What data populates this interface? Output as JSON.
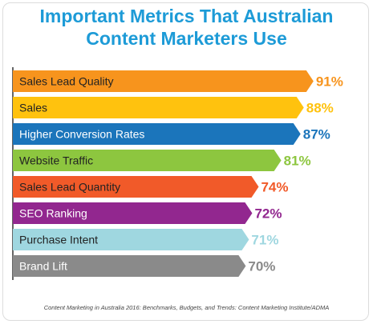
{
  "chart_data": {
    "type": "bar",
    "orientation": "horizontal",
    "title_lines": [
      "Important Metrics That Australian",
      "Content Marketers Use"
    ],
    "categories": [
      "Sales Lead Quality",
      "Sales",
      "Higher Conversion Rates",
      "Website Traffic",
      "Sales Lead Quantity",
      "SEO Ranking",
      "Purchase Intent",
      "Brand Lift"
    ],
    "values": [
      91,
      88,
      87,
      81,
      74,
      72,
      71,
      70
    ],
    "value_labels": [
      "91%",
      "88%",
      "87%",
      "81%",
      "74%",
      "72%",
      "71%",
      "70%"
    ],
    "colors": [
      "#f7941d",
      "#ffc20e",
      "#1b75bb",
      "#8dc63f",
      "#f15a29",
      "#92278f",
      "#9fd7e0",
      "#8a8a8a"
    ],
    "label_text_colors": [
      "#222222",
      "#222222",
      "#ffffff",
      "#222222",
      "#222222",
      "#ffffff",
      "#222222",
      "#ffffff"
    ],
    "xlim": [
      0,
      100
    ],
    "grid": false,
    "legend": "none",
    "source": "Content Marketing in Australia 2016: Benchmarks, Budgets, and Trends: Content Marketing Institute/ADMA"
  }
}
